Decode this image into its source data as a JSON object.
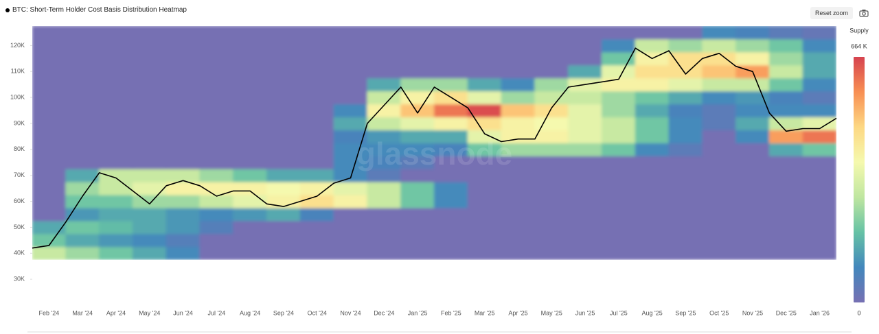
{
  "toolbar": {
    "reset_zoom": "Reset zoom"
  },
  "chart_data": {
    "type": "heatmap",
    "title": "BTC: Short-Term Holder Cost Basis Distribution Heatmap",
    "watermark": "glassnode",
    "categories": [
      null,
      "Feb '24",
      null,
      "Mar '24",
      null,
      "Apr '24",
      null,
      "May '24",
      null,
      "Jun '24",
      null,
      "Jul '24",
      null,
      "Aug '24",
      null,
      "Sep '24",
      null,
      "Oct '24",
      null,
      "Nov '24",
      null,
      "Dec '24",
      null,
      "Jan '25",
      null,
      "Feb '25",
      null,
      "Mar '25",
      null,
      "Apr '25",
      null,
      "May '25",
      null,
      "Jun '25",
      null,
      "Jul '25",
      null,
      "Aug '25",
      null,
      "Sep '25",
      null,
      "Oct '25",
      null,
      "Nov '25",
      null,
      "Dec '25",
      null,
      "Jan '26",
      null
    ],
    "values": [
      42000,
      43000,
      52000,
      62000,
      71000,
      69000,
      64000,
      59000,
      66000,
      68000,
      66000,
      62000,
      64000,
      64000,
      59000,
      58000,
      60000,
      62000,
      67000,
      69000,
      90000,
      97000,
      104000,
      94000,
      104000,
      100000,
      96000,
      86000,
      83000,
      84000,
      84000,
      96000,
      104000,
      105000,
      106000,
      107000,
      119000,
      115000,
      118000,
      109000,
      115000,
      117000,
      112000,
      110000,
      94000,
      87000,
      88000,
      88000,
      92000
    ],
    "color": "#000000",
    "y_bins": [
      37500,
      42500,
      47500,
      52500,
      57500,
      62500,
      67500,
      72500,
      77500,
      82500,
      87500,
      92500,
      97500,
      102500,
      107500,
      112500,
      117500,
      122500,
      127500
    ],
    "z": [
      [
        300,
        250,
        200,
        150,
        100,
        0,
        0,
        0,
        0,
        0,
        0,
        0,
        0,
        0,
        0,
        0,
        0,
        0,
        0,
        0,
        0,
        0,
        0,
        0
      ],
      [
        200,
        150,
        120,
        100,
        60,
        0,
        0,
        0,
        0,
        0,
        0,
        0,
        0,
        0,
        0,
        0,
        0,
        0,
        0,
        0,
        0,
        0,
        0,
        0
      ],
      [
        150,
        200,
        180,
        150,
        120,
        60,
        0,
        0,
        0,
        0,
        0,
        0,
        0,
        0,
        0,
        0,
        0,
        0,
        0,
        0,
        0,
        0,
        0,
        0
      ],
      [
        0,
        120,
        150,
        150,
        120,
        100,
        120,
        150,
        80,
        0,
        0,
        0,
        0,
        0,
        0,
        0,
        0,
        0,
        0,
        0,
        0,
        0,
        0,
        0
      ],
      [
        0,
        200,
        200,
        250,
        250,
        300,
        350,
        400,
        450,
        400,
        300,
        200,
        100,
        0,
        0,
        0,
        0,
        0,
        0,
        0,
        0,
        0,
        0,
        0
      ],
      [
        0,
        250,
        300,
        350,
        400,
        400,
        400,
        380,
        400,
        350,
        300,
        200,
        100,
        0,
        0,
        0,
        0,
        0,
        0,
        0,
        0,
        0,
        0,
        0
      ],
      [
        0,
        150,
        300,
        300,
        300,
        250,
        200,
        150,
        150,
        100,
        50,
        0,
        0,
        0,
        0,
        0,
        0,
        0,
        0,
        0,
        0,
        0,
        0,
        0
      ],
      [
        0,
        0,
        0,
        0,
        0,
        0,
        0,
        0,
        0,
        100,
        80,
        50,
        0,
        0,
        0,
        0,
        0,
        0,
        0,
        0,
        0,
        0,
        0,
        0
      ],
      [
        0,
        0,
        0,
        0,
        0,
        0,
        0,
        0,
        0,
        100,
        100,
        100,
        80,
        200,
        250,
        250,
        250,
        200,
        100,
        50,
        0,
        0,
        150,
        200
      ],
      [
        0,
        0,
        0,
        0,
        0,
        0,
        0,
        0,
        0,
        80,
        120,
        150,
        150,
        350,
        400,
        400,
        350,
        300,
        200,
        100,
        0,
        100,
        550,
        600
      ],
      [
        0,
        0,
        0,
        0,
        0,
        0,
        0,
        0,
        0,
        150,
        300,
        350,
        400,
        450,
        400,
        380,
        350,
        300,
        200,
        100,
        50,
        150,
        300,
        350
      ],
      [
        0,
        0,
        0,
        0,
        0,
        0,
        0,
        0,
        0,
        100,
        400,
        500,
        600,
        650,
        500,
        450,
        350,
        250,
        150,
        80,
        50,
        100,
        100,
        100
      ],
      [
        0,
        0,
        0,
        0,
        0,
        0,
        0,
        0,
        0,
        0,
        300,
        400,
        450,
        350,
        250,
        300,
        300,
        250,
        200,
        150,
        100,
        120,
        80,
        50
      ],
      [
        0,
        0,
        0,
        0,
        0,
        0,
        0,
        0,
        0,
        0,
        150,
        250,
        250,
        150,
        100,
        250,
        350,
        400,
        400,
        350,
        300,
        300,
        200,
        100
      ],
      [
        0,
        0,
        0,
        0,
        0,
        0,
        0,
        0,
        0,
        0,
        0,
        0,
        0,
        0,
        0,
        0,
        150,
        350,
        450,
        450,
        500,
        550,
        300,
        150
      ],
      [
        0,
        0,
        0,
        0,
        0,
        0,
        0,
        0,
        0,
        0,
        0,
        0,
        0,
        0,
        0,
        0,
        0,
        200,
        400,
        450,
        450,
        400,
        250,
        150
      ],
      [
        0,
        0,
        0,
        0,
        0,
        0,
        0,
        0,
        0,
        0,
        0,
        0,
        0,
        0,
        0,
        0,
        0,
        100,
        300,
        250,
        300,
        250,
        200,
        100
      ],
      [
        0,
        0,
        0,
        0,
        0,
        0,
        0,
        0,
        0,
        0,
        0,
        0,
        0,
        0,
        0,
        0,
        0,
        0,
        0,
        0,
        100,
        80,
        50,
        30
      ]
    ],
    "colorscale": [
      "#7670b3",
      "#4287bc",
      "#66c2a5",
      "#bfe6a0",
      "#f5f9ae",
      "#fdd883",
      "#f88f53",
      "#d6434f"
    ],
    "colorbar_title": "Supply",
    "zlim": [
      0,
      664
    ],
    "zticks": [
      0,
      {
        "value": 664,
        "label": "664 K"
      }
    ],
    "ylim": [
      20000,
      127500
    ],
    "yticks": [
      {
        "value": 30000,
        "label": "30K"
      },
      {
        "value": 40000,
        "label": "40K"
      },
      {
        "value": 50000,
        "label": "50K"
      },
      {
        "value": 60000,
        "label": "60K"
      },
      {
        "value": 70000,
        "label": "70K"
      },
      {
        "value": 80000,
        "label": "80K"
      },
      {
        "value": 90000,
        "label": "90K"
      },
      {
        "value": 100000,
        "label": "100K"
      },
      {
        "value": 110000,
        "label": "110K"
      },
      {
        "value": 120000,
        "label": "120K"
      }
    ]
  }
}
